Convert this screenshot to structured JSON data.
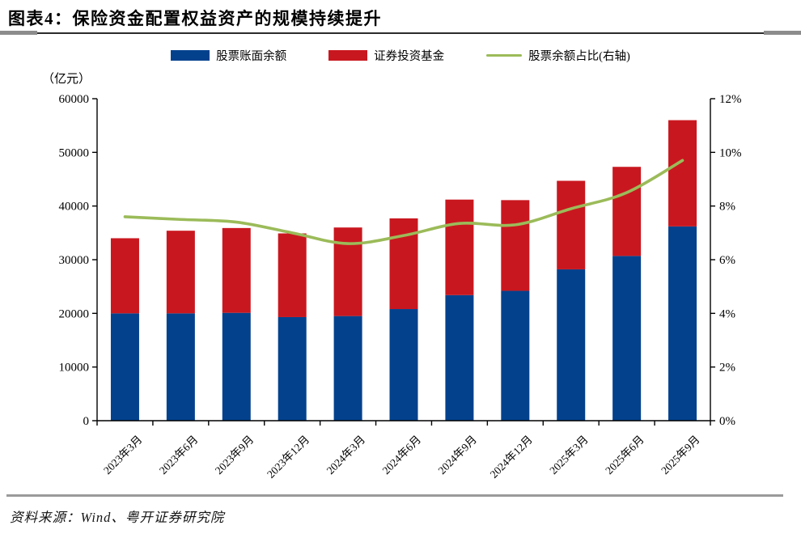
{
  "header": {
    "title": "图表4：保险资金配置权益资产的规模持续提升"
  },
  "footer": {
    "source": "资料来源：Wind、粤开证券研究院"
  },
  "chart_data": {
    "type": "bar",
    "stacked": true,
    "title": "保险资金配置权益资产的规模持续提升",
    "unit_label": "（亿元）",
    "grid": false,
    "legend_position": "top",
    "categories": [
      "2023年3月",
      "2023年6月",
      "2023年9月",
      "2023年12月",
      "2024年3月",
      "2024年6月",
      "2024年9月",
      "2024年12月",
      "2025年3月",
      "2025年6月",
      "2025年9月"
    ],
    "series": [
      {
        "name": "股票账面余额",
        "type": "bar",
        "axis": "left",
        "color": "#03418D",
        "values": [
          20000,
          20000,
          20100,
          19300,
          19500,
          20800,
          23400,
          24200,
          28200,
          30700,
          36200
        ]
      },
      {
        "name": "证券投资基金",
        "type": "bar",
        "axis": "left",
        "color": "#C9171F",
        "values": [
          14000,
          15400,
          15800,
          15600,
          16500,
          16900,
          17800,
          16900,
          16500,
          16600,
          19800
        ]
      },
      {
        "name": "股票余额占比(右轴)",
        "type": "line",
        "axis": "right",
        "color": "#9BBB59",
        "values": [
          7.6,
          7.5,
          7.4,
          7.0,
          6.6,
          6.9,
          7.35,
          7.3,
          7.9,
          8.5,
          9.7
        ]
      }
    ],
    "left_axis": {
      "min": 0,
      "max": 60000,
      "step": 10000,
      "tick_labels": [
        "0",
        "10000",
        "20000",
        "30000",
        "40000",
        "50000",
        "60000"
      ]
    },
    "right_axis": {
      "min": 0,
      "max": 12,
      "step": 2,
      "tick_labels": [
        "0%",
        "2%",
        "4%",
        "6%",
        "8%",
        "10%",
        "12%"
      ]
    }
  }
}
